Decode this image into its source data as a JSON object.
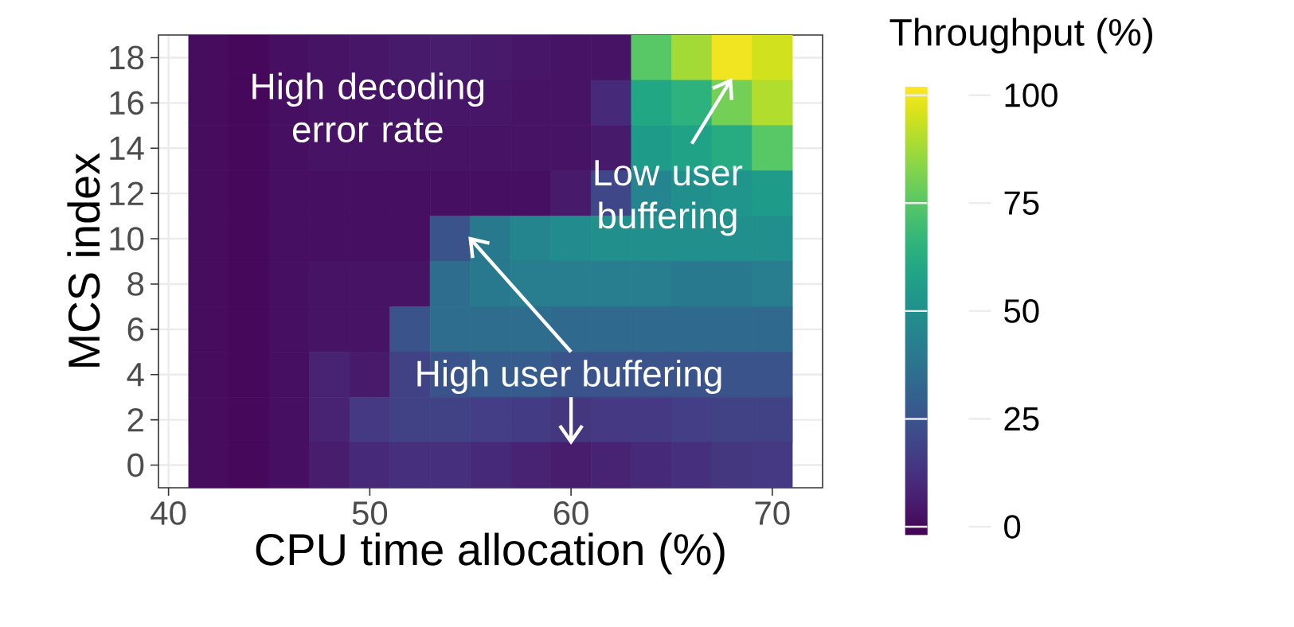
{
  "chart_data": {
    "type": "heatmap",
    "xlabel": "CPU time allocation (%)",
    "ylabel": "MCS index",
    "clabel": "Throughput (%)",
    "x": [
      42,
      44,
      46,
      48,
      50,
      52,
      54,
      56,
      58,
      60,
      62,
      64,
      66,
      68,
      70
    ],
    "y": [
      18,
      16,
      14,
      12,
      10,
      8,
      6,
      4,
      2,
      0
    ],
    "cells": [
      [
        1,
        0,
        2,
        3,
        4,
        5,
        6,
        5,
        4,
        3,
        3,
        75,
        88,
        100,
        95
      ],
      [
        1,
        0,
        2,
        3,
        3,
        4,
        4,
        4,
        3,
        3,
        10,
        60,
        65,
        80,
        90
      ],
      [
        1,
        0,
        2,
        3,
        3,
        3,
        3,
        3,
        3,
        3,
        5,
        55,
        58,
        62,
        75
      ],
      [
        1,
        0,
        2,
        2,
        2,
        2,
        2,
        2,
        2,
        5,
        20,
        45,
        50,
        52,
        55
      ],
      [
        1,
        0,
        2,
        2,
        2,
        2,
        25,
        40,
        45,
        48,
        50,
        50,
        50,
        50,
        50
      ],
      [
        1,
        0,
        2,
        3,
        3,
        3,
        35,
        40,
        42,
        42,
        42,
        42,
        40,
        40,
        42
      ],
      [
        1,
        0,
        2,
        3,
        3,
        25,
        35,
        35,
        35,
        33,
        33,
        33,
        33,
        33,
        33
      ],
      [
        1,
        0,
        2,
        8,
        5,
        18,
        25,
        28,
        28,
        25,
        25,
        25,
        25,
        25,
        25
      ],
      [
        1,
        0,
        2,
        8,
        15,
        18,
        18,
        17,
        16,
        14,
        15,
        15,
        17,
        18,
        18
      ],
      [
        1,
        0,
        2,
        6,
        10,
        12,
        12,
        10,
        8,
        6,
        8,
        10,
        12,
        14,
        15
      ]
    ],
    "xlim": [
      39.5,
      72.5
    ],
    "ylim": [
      -1,
      19
    ],
    "xticks": [
      40,
      50,
      60,
      70
    ],
    "yticks": [
      0,
      2,
      4,
      6,
      8,
      10,
      12,
      14,
      16,
      18
    ],
    "clim": [
      -2,
      102
    ],
    "cticks": [
      0,
      25,
      50,
      75,
      100
    ],
    "grid": true,
    "annotations": [
      "High decoding error rate",
      "Low user buffering",
      "High user buffering"
    ]
  }
}
